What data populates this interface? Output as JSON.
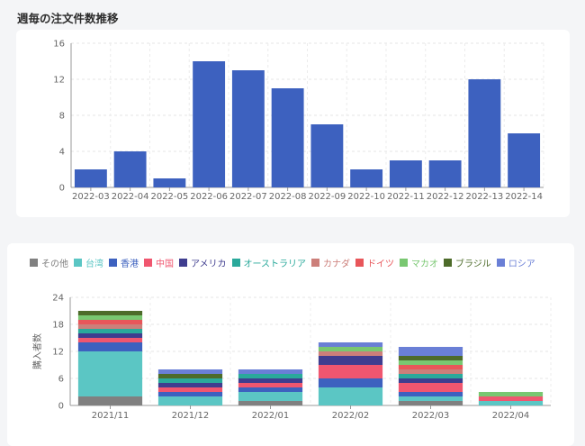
{
  "page": {
    "title": "週毎の注文件数推移"
  },
  "chart_data": [
    {
      "type": "bar",
      "title": "",
      "categories": [
        "2022-03",
        "2022-04",
        "2022-05",
        "2022-06",
        "2022-07",
        "2022-08",
        "2022-09",
        "2022-10",
        "2022-11",
        "2022-12",
        "2022-13",
        "2022-14"
      ],
      "values": [
        2,
        4,
        1,
        14,
        13,
        11,
        7,
        2,
        3,
        3,
        12,
        6
      ],
      "ylim": [
        0,
        16
      ],
      "yticks": [
        0,
        4,
        8,
        12,
        16
      ],
      "xlabel": "",
      "ylabel": "",
      "grid": true,
      "color": "#3d61bf"
    },
    {
      "type": "bar",
      "stacked": true,
      "categories": [
        "2021/11",
        "2021/12",
        "2022/01",
        "2022/02",
        "2022/03",
        "2022/04"
      ],
      "ylabel": "購入者数",
      "xlabel": "",
      "ylim": [
        0,
        24
      ],
      "yticks": [
        0,
        6,
        12,
        18,
        24
      ],
      "grid": true,
      "legend_position": "top",
      "series": [
        {
          "name": "その他",
          "color": "#808080",
          "values": [
            2,
            0,
            1,
            0,
            1,
            0
          ]
        },
        {
          "name": "台湾",
          "color": "#5bc6c4",
          "values": [
            10,
            2,
            2,
            4,
            1,
            1
          ]
        },
        {
          "name": "香港",
          "color": "#3d61bf",
          "values": [
            2,
            1,
            1,
            2,
            1,
            0
          ]
        },
        {
          "name": "中国",
          "color": "#f0566f",
          "values": [
            1,
            1,
            1,
            3,
            2,
            1
          ]
        },
        {
          "name": "アメリカ",
          "color": "#3f3d8f",
          "values": [
            1,
            1,
            1,
            2,
            1,
            0
          ]
        },
        {
          "name": "オーストラリア",
          "color": "#2aa99b",
          "values": [
            1,
            1,
            1,
            0,
            1,
            0
          ]
        },
        {
          "name": "カナダ",
          "color": "#cc7f7a",
          "values": [
            1,
            0,
            0,
            1,
            1,
            0
          ]
        },
        {
          "name": "ドイツ",
          "color": "#e8565a",
          "values": [
            1,
            0,
            0,
            0,
            1,
            0
          ]
        },
        {
          "name": "マカオ",
          "color": "#79c771",
          "values": [
            1,
            0,
            0,
            1,
            1,
            1
          ]
        },
        {
          "name": "ブラジル",
          "color": "#4d6b2a",
          "values": [
            1,
            1,
            0,
            0,
            1,
            0
          ]
        },
        {
          "name": "ロシア",
          "color": "#6a7fd6",
          "values": [
            0,
            1,
            1,
            1,
            2,
            0
          ]
        }
      ]
    }
  ]
}
